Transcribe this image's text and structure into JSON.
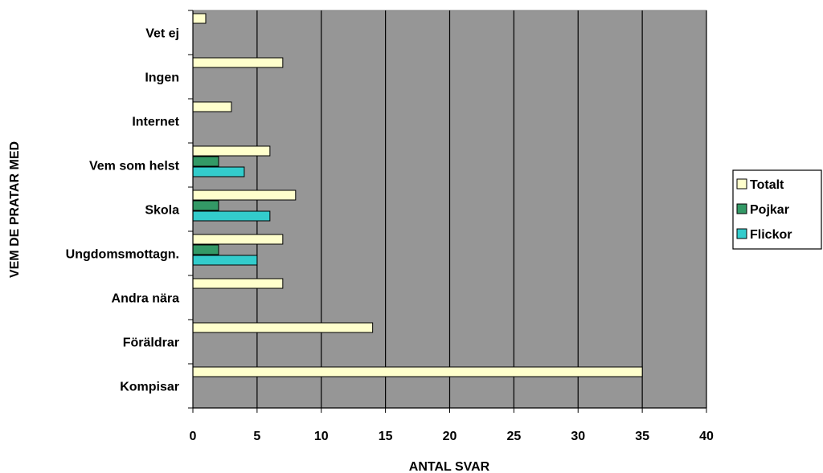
{
  "chart_data": {
    "type": "bar",
    "orientation": "horizontal",
    "title": "",
    "xlabel": "ANTAL SVAR",
    "ylabel": "VEM DE PRATAR MED",
    "xlim": [
      0,
      40
    ],
    "x_ticks": [
      0,
      5,
      10,
      15,
      20,
      25,
      30,
      35,
      40
    ],
    "categories": [
      "Vet ej",
      "Ingen",
      "Internet",
      "Vem som helst",
      "Skola",
      "Ungdomsmottagn.",
      "Andra nära",
      "Föräldrar",
      "Kompisar"
    ],
    "series": [
      {
        "name": "Totalt",
        "color": "#ffffcc",
        "values": [
          1,
          7,
          3,
          6,
          8,
          7,
          7,
          14,
          35
        ]
      },
      {
        "name": "Pojkar",
        "color": "#339966",
        "values": [
          null,
          null,
          null,
          2,
          2,
          2,
          null,
          null,
          null
        ]
      },
      {
        "name": "Flickor",
        "color": "#33cccc",
        "values": [
          null,
          null,
          null,
          4,
          6,
          5,
          null,
          null,
          null
        ]
      }
    ],
    "grid": "vertical",
    "plot_background": "#969696",
    "legend_position": "right"
  }
}
